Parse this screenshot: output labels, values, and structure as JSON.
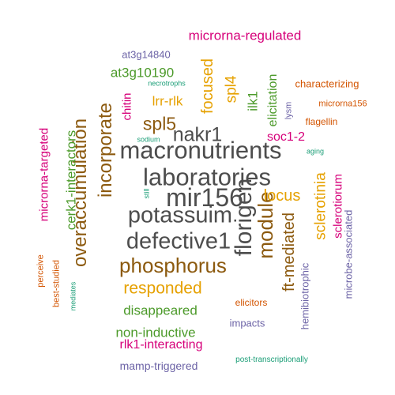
{
  "palette": {
    "gray": "#4d4d4d",
    "brown": "#8c5a0f",
    "green": "#4c9a2a",
    "magenta": "#d6007a",
    "orange": "#e6a100",
    "purple": "#6c63a6",
    "rust": "#d35400",
    "teal": "#1b9e77"
  },
  "words": [
    {
      "text": "macronutrients",
      "color": "gray",
      "weight": 0.9
    },
    {
      "text": "laboratories",
      "color": "gray",
      "weight": 0.88
    },
    {
      "text": "mir156",
      "color": "gray",
      "weight": 0.88
    },
    {
      "text": "potassuim",
      "color": "gray",
      "weight": 0.85
    },
    {
      "text": "defective1",
      "color": "gray",
      "weight": 0.85
    },
    {
      "text": "florigen",
      "color": "gray",
      "weight": 0.85
    },
    {
      "text": "nakr1",
      "color": "gray",
      "weight": 0.8
    },
    {
      "text": "phosphorus",
      "color": "brown",
      "weight": 0.75
    },
    {
      "text": "incorporate",
      "color": "brown",
      "weight": 0.72
    },
    {
      "text": "overaccumulation",
      "color": "brown",
      "weight": 0.72
    },
    {
      "text": "module",
      "color": "brown",
      "weight": 0.7
    },
    {
      "text": "spl5",
      "color": "brown",
      "weight": 0.62
    },
    {
      "text": "locus",
      "color": "orange",
      "weight": 0.55
    },
    {
      "text": "responded",
      "color": "orange",
      "weight": 0.55
    },
    {
      "text": "focused",
      "color": "orange",
      "weight": 0.55
    },
    {
      "text": "ft-mediated",
      "color": "brown",
      "weight": 0.55
    },
    {
      "text": "sclerotinia",
      "color": "orange",
      "weight": 0.5
    },
    {
      "text": "spl4",
      "color": "orange",
      "weight": 0.5
    },
    {
      "text": "lrr-rlk",
      "color": "orange",
      "weight": 0.45
    },
    {
      "text": "cerk1-interactors",
      "color": "green",
      "weight": 0.48
    },
    {
      "text": "disappeared",
      "color": "green",
      "weight": 0.48
    },
    {
      "text": "at3g10190",
      "color": "green",
      "weight": 0.45
    },
    {
      "text": "ilk1",
      "color": "green",
      "weight": 0.45
    },
    {
      "text": "elicitation",
      "color": "green",
      "weight": 0.42
    },
    {
      "text": "non-inductive",
      "color": "green",
      "weight": 0.42
    },
    {
      "text": "rlk1-interacting",
      "color": "magenta",
      "weight": 0.42
    },
    {
      "text": "microrna-targeted",
      "color": "magenta",
      "weight": 0.4
    },
    {
      "text": "microrna-regulated",
      "color": "magenta",
      "weight": 0.38
    },
    {
      "text": "sclerotiorum",
      "color": "magenta",
      "weight": 0.38
    },
    {
      "text": "chitin",
      "color": "magenta",
      "weight": 0.35
    },
    {
      "text": "soc1-2",
      "color": "magenta",
      "weight": 0.35
    },
    {
      "text": "microbe-associated",
      "color": "purple",
      "weight": 0.35
    },
    {
      "text": "mamp-triggered",
      "color": "purple",
      "weight": 0.35
    },
    {
      "text": "at3g14840",
      "color": "purple",
      "weight": 0.32
    },
    {
      "text": "impacts",
      "color": "purple",
      "weight": 0.32
    },
    {
      "text": "hemibiotrophic",
      "color": "purple",
      "weight": 0.3
    },
    {
      "text": "characterizing",
      "color": "rust",
      "weight": 0.3
    },
    {
      "text": "flagellin",
      "color": "rust",
      "weight": 0.28
    },
    {
      "text": "elicitors",
      "color": "rust",
      "weight": 0.26
    },
    {
      "text": "microrna156",
      "color": "rust",
      "weight": 0.25
    },
    {
      "text": "perceive",
      "color": "rust",
      "weight": 0.25
    },
    {
      "text": "best-studied",
      "color": "rust",
      "weight": 0.25
    },
    {
      "text": "lysm",
      "color": "purple",
      "weight": 0.25
    },
    {
      "text": "post-transcriptionally",
      "color": "teal",
      "weight": 0.22
    },
    {
      "text": "necrotrophs",
      "color": "teal",
      "weight": 0.2
    },
    {
      "text": "sodium",
      "color": "teal",
      "weight": 0.2
    },
    {
      "text": "aging",
      "color": "teal",
      "weight": 0.2
    },
    {
      "text": "still",
      "color": "teal",
      "weight": 0.2
    },
    {
      "text": "mediates",
      "color": "teal",
      "weight": 0.2
    }
  ]
}
